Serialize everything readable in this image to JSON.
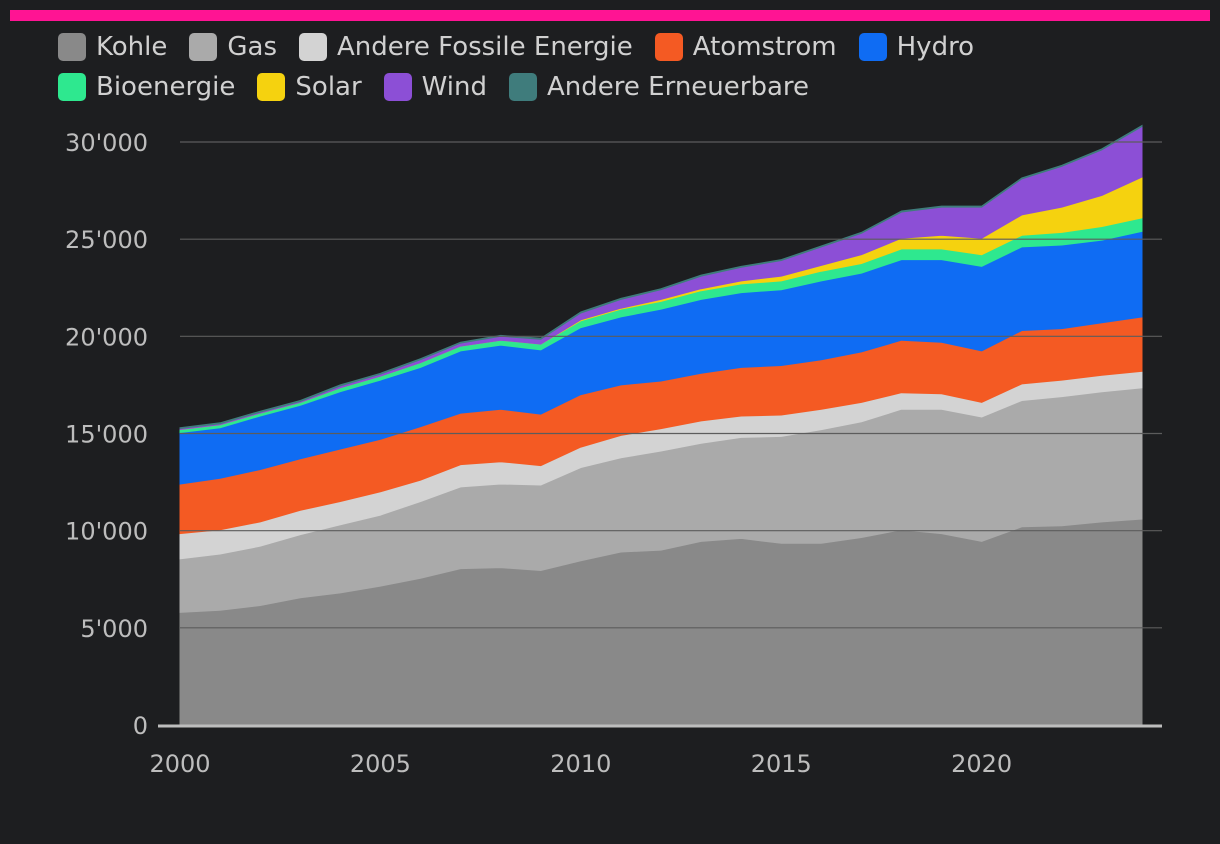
{
  "accent_color": "#ff1493",
  "chart_data": {
    "type": "area",
    "stacked": true,
    "x": [
      2000,
      2001,
      2002,
      2003,
      2004,
      2005,
      2006,
      2007,
      2008,
      2009,
      2010,
      2011,
      2012,
      2013,
      2014,
      2015,
      2016,
      2017,
      2018,
      2019,
      2020,
      2021,
      2022,
      2023,
      2024
    ],
    "series": [
      {
        "name": "Kohle",
        "color": "#898989",
        "values": [
          5800,
          5900,
          6150,
          6550,
          6800,
          7150,
          7550,
          8050,
          8100,
          7950,
          8450,
          8900,
          9000,
          9450,
          9600,
          9350,
          9350,
          9650,
          10050,
          9850,
          9450,
          10200,
          10250,
          10450,
          10600
        ]
      },
      {
        "name": "Gas",
        "color": "#aaaaaa",
        "values": [
          2750,
          2900,
          3050,
          3250,
          3500,
          3650,
          3950,
          4200,
          4300,
          4400,
          4800,
          4850,
          5100,
          5050,
          5200,
          5500,
          5850,
          5950,
          6200,
          6400,
          6400,
          6500,
          6650,
          6700,
          6750
        ]
      },
      {
        "name": "Andere Fossile Energie",
        "color": "#d3d3d3",
        "values": [
          1300,
          1250,
          1250,
          1250,
          1200,
          1200,
          1100,
          1150,
          1150,
          1000,
          1050,
          1150,
          1150,
          1150,
          1100,
          1100,
          1050,
          1000,
          850,
          800,
          750,
          850,
          850,
          850,
          850
        ]
      },
      {
        "name": "Atomstrom",
        "color": "#f45a23",
        "values": [
          2550,
          2650,
          2700,
          2650,
          2700,
          2700,
          2750,
          2650,
          2700,
          2650,
          2700,
          2600,
          2450,
          2450,
          2500,
          2550,
          2550,
          2600,
          2700,
          2650,
          2650,
          2750,
          2650,
          2700,
          2800
        ]
      },
      {
        "name": "Hydro",
        "color": "#0f6cf3",
        "values": [
          2650,
          2600,
          2750,
          2750,
          2950,
          3050,
          3050,
          3200,
          3300,
          3300,
          3450,
          3500,
          3700,
          3800,
          3850,
          3900,
          4050,
          4050,
          4150,
          4250,
          4350,
          4300,
          4300,
          4250,
          4400
        ]
      },
      {
        "name": "Bioenergie",
        "color": "#2ee88f",
        "values": [
          150,
          150,
          150,
          150,
          200,
          200,
          250,
          250,
          250,
          300,
          350,
          400,
          400,
          450,
          450,
          450,
          500,
          500,
          550,
          550,
          600,
          600,
          650,
          700,
          700
        ]
      },
      {
        "name": "Solar",
        "color": "#f5d20f",
        "values": [
          0,
          0,
          0,
          0,
          0,
          0,
          0,
          0,
          0,
          0,
          50,
          50,
          100,
          100,
          150,
          250,
          300,
          450,
          550,
          700,
          850,
          1050,
          1300,
          1600,
          2100
        ]
      },
      {
        "name": "Wind",
        "color": "#8c4fd6",
        "values": [
          50,
          50,
          50,
          50,
          100,
          100,
          150,
          150,
          200,
          250,
          350,
          450,
          500,
          650,
          700,
          800,
          950,
          1100,
          1350,
          1450,
          1600,
          1850,
          2100,
          2350,
          2600
        ]
      },
      {
        "name": "Andere Erneuerbare",
        "color": "#3f7c7c",
        "values": [
          50,
          50,
          50,
          50,
          50,
          50,
          50,
          50,
          50,
          50,
          50,
          50,
          50,
          50,
          50,
          50,
          50,
          50,
          50,
          50,
          50,
          50,
          50,
          50,
          50
        ]
      }
    ],
    "ylim": [
      0,
      30000
    ],
    "yticks": [
      0,
      5000,
      10000,
      15000,
      20000,
      25000,
      30000
    ],
    "ytick_labels": [
      "0",
      "5'000",
      "10'000",
      "15'000",
      "20'000",
      "25'000",
      "30'000"
    ],
    "xticks": [
      2000,
      2005,
      2010,
      2015,
      2020
    ],
    "xtick_labels": [
      "2000",
      "2005",
      "2010",
      "2015",
      "2020"
    ],
    "grid": true,
    "legend_position": "top-left"
  }
}
